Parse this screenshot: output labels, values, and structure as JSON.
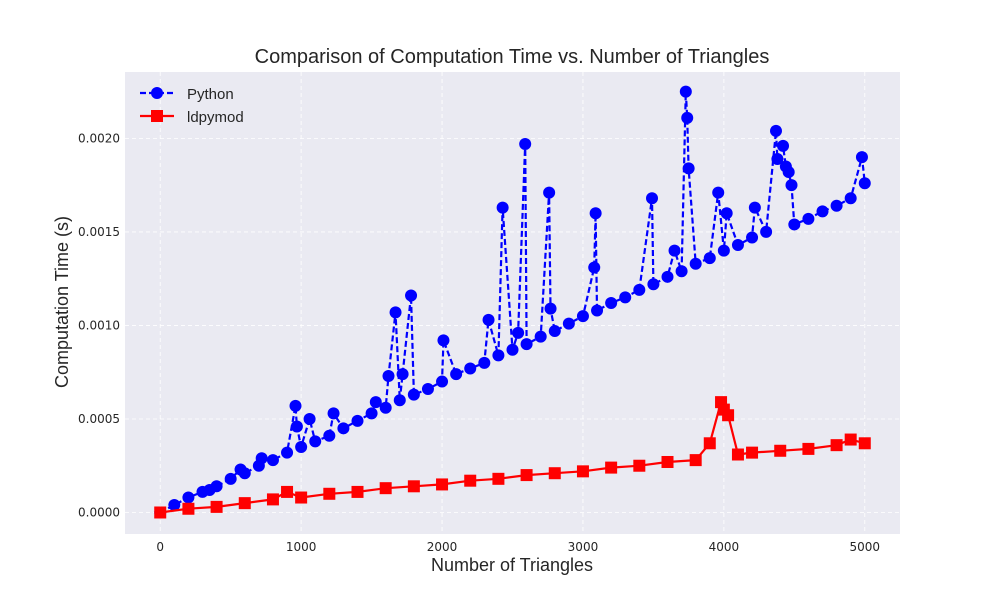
{
  "colors": {
    "plot_bg": "#eaeaf2",
    "grid": "#ffffff",
    "python": "#0000ff",
    "ldpymod": "#ff0000",
    "text": "#262626"
  },
  "chart_data": {
    "type": "line",
    "title": "Comparison of Computation Time vs. Number of Triangles",
    "xlabel": "Number of Triangles",
    "ylabel": "Computation Time (s)",
    "xlim": [
      -250,
      5250
    ],
    "ylim": [
      -0.000115,
      0.002355
    ],
    "x_ticks": [
      0,
      1000,
      2000,
      3000,
      4000,
      5000
    ],
    "x_tick_labels": [
      "0",
      "1000",
      "2000",
      "3000",
      "4000",
      "5000"
    ],
    "y_ticks": [
      0.0,
      0.0005,
      0.001,
      0.0015,
      0.002
    ],
    "y_tick_labels": [
      "0.0000",
      "0.0005",
      "0.0010",
      "0.0015",
      "0.0020"
    ],
    "grid": true,
    "legend_position": "top-left",
    "series": [
      {
        "name": "Python",
        "marker": "circle",
        "linestyle": "dashed",
        "color": "#0000ff",
        "x": [
          0,
          100,
          200,
          300,
          350,
          400,
          500,
          570,
          600,
          700,
          720,
          800,
          900,
          960,
          970,
          1000,
          1060,
          1100,
          1200,
          1230,
          1300,
          1400,
          1500,
          1530,
          1600,
          1620,
          1670,
          1700,
          1720,
          1780,
          1800,
          1900,
          2000,
          2010,
          2100,
          2200,
          2300,
          2330,
          2400,
          2430,
          2500,
          2540,
          2590,
          2600,
          2700,
          2760,
          2770,
          2800,
          2900,
          3000,
          3080,
          3090,
          3100,
          3200,
          3300,
          3400,
          3490,
          3500,
          3600,
          3650,
          3700,
          3730,
          3740,
          3750,
          3800,
          3900,
          3960,
          4000,
          4020,
          4100,
          4200,
          4220,
          4300,
          4370,
          4380,
          4420,
          4440,
          4460,
          4480,
          4500,
          4600,
          4700,
          4800,
          4900,
          4980,
          5000
        ],
        "y": [
          0.0,
          4e-05,
          8e-05,
          0.00011,
          0.00012,
          0.00014,
          0.00018,
          0.00023,
          0.00021,
          0.00025,
          0.00029,
          0.00028,
          0.00032,
          0.00057,
          0.00046,
          0.00035,
          0.0005,
          0.00038,
          0.00041,
          0.00053,
          0.00045,
          0.00049,
          0.00053,
          0.00059,
          0.00056,
          0.00073,
          0.00107,
          0.0006,
          0.00074,
          0.00116,
          0.00063,
          0.00066,
          0.0007,
          0.00092,
          0.00074,
          0.00077,
          0.0008,
          0.00103,
          0.00084,
          0.00163,
          0.00087,
          0.00096,
          0.00197,
          0.0009,
          0.00094,
          0.00171,
          0.00109,
          0.00097,
          0.00101,
          0.00105,
          0.00131,
          0.0016,
          0.00108,
          0.00112,
          0.00115,
          0.00119,
          0.00168,
          0.00122,
          0.00126,
          0.0014,
          0.00129,
          0.00225,
          0.00211,
          0.00184,
          0.00133,
          0.00136,
          0.00171,
          0.0014,
          0.0016,
          0.00143,
          0.00147,
          0.00163,
          0.0015,
          0.00204,
          0.00189,
          0.00196,
          0.00185,
          0.00182,
          0.00175,
          0.00154,
          0.00157,
          0.00161,
          0.00164,
          0.00168,
          0.0019,
          0.00176
        ]
      },
      {
        "name": "ldpymod",
        "marker": "square",
        "linestyle": "solid",
        "color": "#ff0000",
        "x": [
          0,
          200,
          400,
          600,
          800,
          900,
          1000,
          1200,
          1400,
          1600,
          1800,
          2000,
          2200,
          2400,
          2600,
          2800,
          3000,
          3200,
          3400,
          3600,
          3800,
          3900,
          3980,
          4000,
          4030,
          4100,
          4200,
          4400,
          4600,
          4800,
          4900,
          5000
        ],
        "y": [
          0.0,
          2e-05,
          3e-05,
          5e-05,
          7e-05,
          0.00011,
          8e-05,
          0.0001,
          0.00011,
          0.00013,
          0.00014,
          0.00015,
          0.00017,
          0.00018,
          0.0002,
          0.00021,
          0.00022,
          0.00024,
          0.00025,
          0.00027,
          0.00028,
          0.00037,
          0.00059,
          0.00055,
          0.00052,
          0.00031,
          0.00032,
          0.00033,
          0.00034,
          0.00036,
          0.00039,
          0.00037
        ]
      }
    ]
  }
}
